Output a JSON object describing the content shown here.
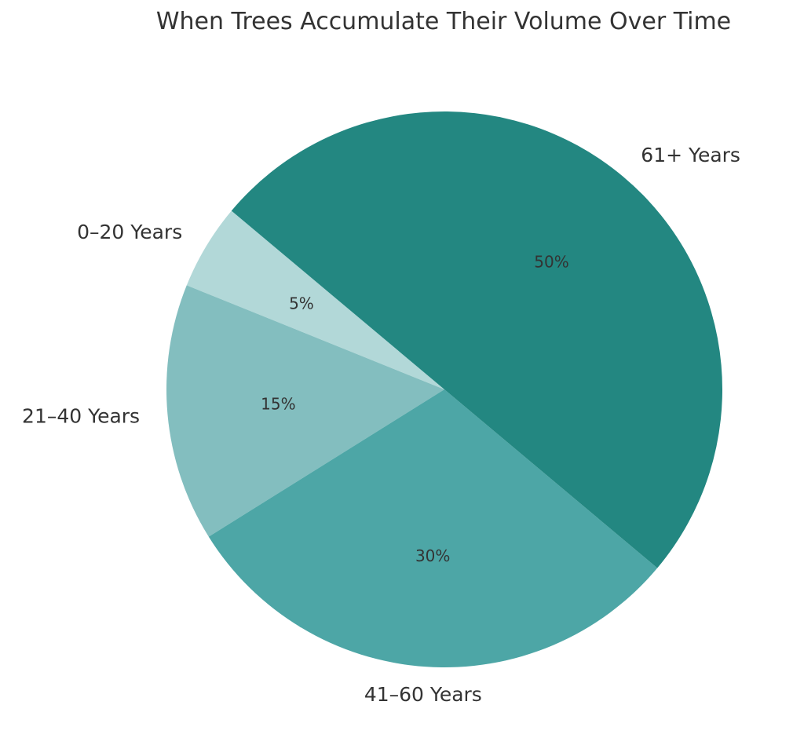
{
  "chart_data": {
    "type": "pie",
    "title": "When Trees Accumulate Their Volume Over Time",
    "slices": [
      {
        "label": "0–20 Years",
        "value": 5,
        "pct_label": "5%",
        "color": "#b2d8d8"
      },
      {
        "label": "21–40 Years",
        "value": 15,
        "pct_label": "15%",
        "color": "#83bebf"
      },
      {
        "label": "41–60 Years",
        "value": 30,
        "pct_label": "30%",
        "color": "#4da6a6"
      },
      {
        "label": "61+ Years",
        "value": 50,
        "pct_label": "50%",
        "color": "#238781"
      }
    ],
    "text_color": "#333333"
  }
}
